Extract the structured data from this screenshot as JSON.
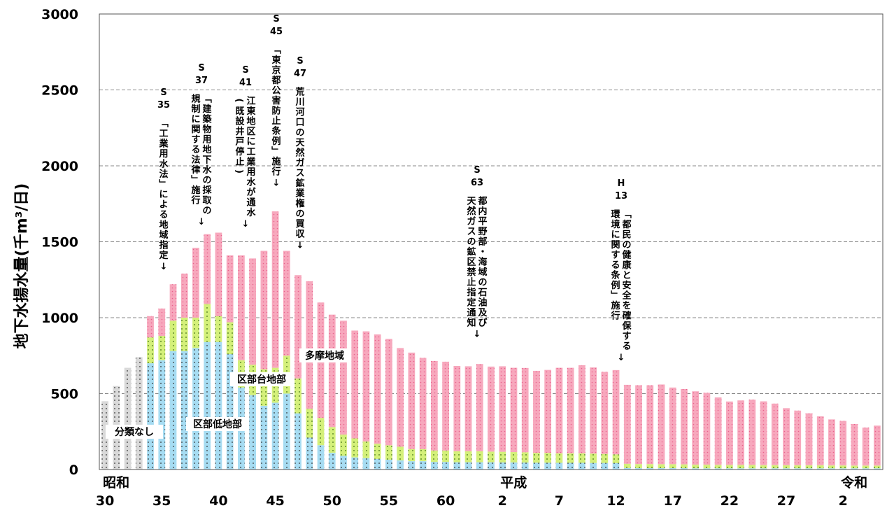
{
  "chart_data": {
    "type": "bar",
    "stacked": true,
    "ylabel": "地下水揚水量(千m³/日)",
    "ylim": [
      0,
      3000
    ],
    "yticks": [
      "0",
      "500",
      "1000",
      "1500",
      "2000",
      "2500",
      "3000"
    ],
    "grid": "horizontal dashed",
    "x": [
      "S30",
      "S31",
      "S32",
      "S33",
      "S34",
      "S35",
      "S36",
      "S37",
      "S38",
      "S39",
      "S40",
      "S41",
      "S42",
      "S43",
      "S44",
      "S45",
      "S46",
      "S47",
      "S48",
      "S49",
      "S50",
      "S51",
      "S52",
      "S53",
      "S54",
      "S55",
      "S56",
      "S57",
      "S58",
      "S59",
      "S60",
      "S61",
      "S62",
      "S63",
      "H1",
      "H2",
      "H3",
      "H4",
      "H5",
      "H6",
      "H7",
      "H8",
      "H9",
      "H10",
      "H11",
      "H12",
      "H13",
      "H14",
      "H15",
      "H16",
      "H17",
      "H18",
      "H19",
      "H20",
      "H21",
      "H22",
      "H23",
      "H24",
      "H25",
      "H26",
      "H27",
      "H28",
      "H29",
      "H30",
      "R1",
      "R2",
      "R3",
      "R4",
      "R5"
    ],
    "era_labels": [
      {
        "text": "昭和",
        "at": "S30"
      },
      {
        "text": "平成",
        "at": "H2"
      },
      {
        "text": "令和",
        "at": "R2"
      }
    ],
    "year_ticks": [
      {
        "text": "30",
        "at": "S30"
      },
      {
        "text": "35",
        "at": "S35"
      },
      {
        "text": "40",
        "at": "S40"
      },
      {
        "text": "45",
        "at": "S45"
      },
      {
        "text": "50",
        "at": "S50"
      },
      {
        "text": "55",
        "at": "S55"
      },
      {
        "text": "60",
        "at": "S60"
      },
      {
        "text": "2",
        "at": "H2"
      },
      {
        "text": "7",
        "at": "H7"
      },
      {
        "text": "12",
        "at": "H12"
      },
      {
        "text": "17",
        "at": "H17"
      },
      {
        "text": "22",
        "at": "H22"
      },
      {
        "text": "27",
        "at": "H27"
      },
      {
        "text": "2",
        "at": "R2"
      }
    ],
    "series": [
      {
        "name": "分類なし",
        "color": "#d9d9d9",
        "values": [
          450,
          550,
          670,
          740,
          0,
          0,
          0,
          0,
          0,
          0,
          0,
          0,
          0,
          0,
          0,
          0,
          0,
          0,
          0,
          0,
          0,
          0,
          0,
          0,
          0,
          0,
          0,
          0,
          0,
          0,
          0,
          0,
          0,
          0,
          0,
          0,
          0,
          0,
          0,
          0,
          0,
          0,
          0,
          0,
          0,
          0,
          0,
          0,
          0,
          0,
          0,
          0,
          0,
          0,
          0,
          0,
          0,
          0,
          0,
          0,
          0,
          0,
          0,
          0,
          0,
          0,
          0,
          0,
          0
        ]
      },
      {
        "name": "区部低地部",
        "color": "#a6dcf2",
        "values": [
          0,
          0,
          0,
          0,
          700,
          720,
          780,
          780,
          800,
          840,
          840,
          760,
          540,
          490,
          420,
          440,
          500,
          370,
          210,
          160,
          110,
          90,
          80,
          75,
          70,
          65,
          60,
          55,
          55,
          50,
          50,
          48,
          48,
          48,
          48,
          47,
          47,
          46,
          45,
          45,
          44,
          44,
          44,
          43,
          43,
          42,
          10,
          9,
          9,
          9,
          9,
          9,
          8,
          8,
          8,
          8,
          8,
          8,
          8,
          8,
          8,
          8,
          8,
          8,
          8,
          8,
          8,
          8,
          8
        ]
      },
      {
        "name": "区部台地部",
        "color": "#d4f07a",
        "values": [
          0,
          0,
          0,
          0,
          170,
          160,
          200,
          220,
          200,
          250,
          170,
          210,
          180,
          200,
          240,
          230,
          250,
          230,
          190,
          180,
          170,
          140,
          125,
          110,
          100,
          95,
          90,
          80,
          80,
          75,
          75,
          72,
          72,
          72,
          70,
          70,
          68,
          68,
          65,
          65,
          63,
          63,
          63,
          62,
          60,
          58,
          28,
          27,
          27,
          26,
          26,
          25,
          24,
          24,
          23,
          22,
          22,
          22,
          21,
          21,
          20,
          20,
          20,
          20,
          19,
          19,
          18,
          18,
          18
        ]
      },
      {
        "name": "多摩地域",
        "color": "#f7a8bd",
        "values": [
          0,
          0,
          0,
          0,
          140,
          180,
          240,
          290,
          460,
          460,
          550,
          440,
          690,
          700,
          780,
          1030,
          690,
          680,
          840,
          760,
          740,
          750,
          710,
          725,
          720,
          700,
          650,
          635,
          600,
          590,
          585,
          562,
          560,
          575,
          560,
          563,
          555,
          555,
          540,
          546,
          563,
          563,
          580,
          567,
          540,
          555,
          520,
          519,
          519,
          525,
          505,
          496,
          483,
          473,
          444,
          418,
          425,
          430,
          420,
          405,
          376,
          360,
          342,
          322,
          303,
          293,
          274,
          250,
          263
        ]
      }
    ],
    "area_labels": [
      {
        "text": "分類なし",
        "series": "分類なし"
      },
      {
        "text": "区部低地部",
        "series": "区部低地部"
      },
      {
        "text": "区部台地部",
        "series": "区部台地部"
      },
      {
        "text": "多摩地域",
        "series": "多摩地域"
      }
    ],
    "annotations": [
      {
        "era": "S",
        "year": "35",
        "lines": [
          "「工業用水法」による地域指定"
        ],
        "arrow": "↓",
        "at": "S35"
      },
      {
        "era": "S",
        "year": "37",
        "lines": [
          "「建築物用地下水の採取の",
          "規制に関する法律」施行"
        ],
        "arrow": "↓",
        "at": "S37"
      },
      {
        "era": "S",
        "year": "41",
        "lines": [
          "江東地区に工業用水が通水",
          "(既設井戸停止)"
        ],
        "arrow": "↓",
        "at": "S41"
      },
      {
        "era": "S",
        "year": "45",
        "lines": [
          "「東京都公害防止条例」施行"
        ],
        "arrow": "↓",
        "at": "S45"
      },
      {
        "era": "S",
        "year": "47",
        "lines": [
          "荒川河口の天然ガス鉱業権の買収"
        ],
        "arrow": "↓",
        "at": "S47"
      },
      {
        "era": "S",
        "year": "63",
        "lines": [
          "都内平野部・海域の石油及び",
          "天然ガスの鉱区禁止指定通知"
        ],
        "arrow": "↓",
        "at": "S63"
      },
      {
        "era": "H",
        "year": "13",
        "lines": [
          "「都民の健康と安全を確保する",
          "環境に関する条例」施行"
        ],
        "arrow": "↓",
        "at": "H13"
      }
    ]
  }
}
